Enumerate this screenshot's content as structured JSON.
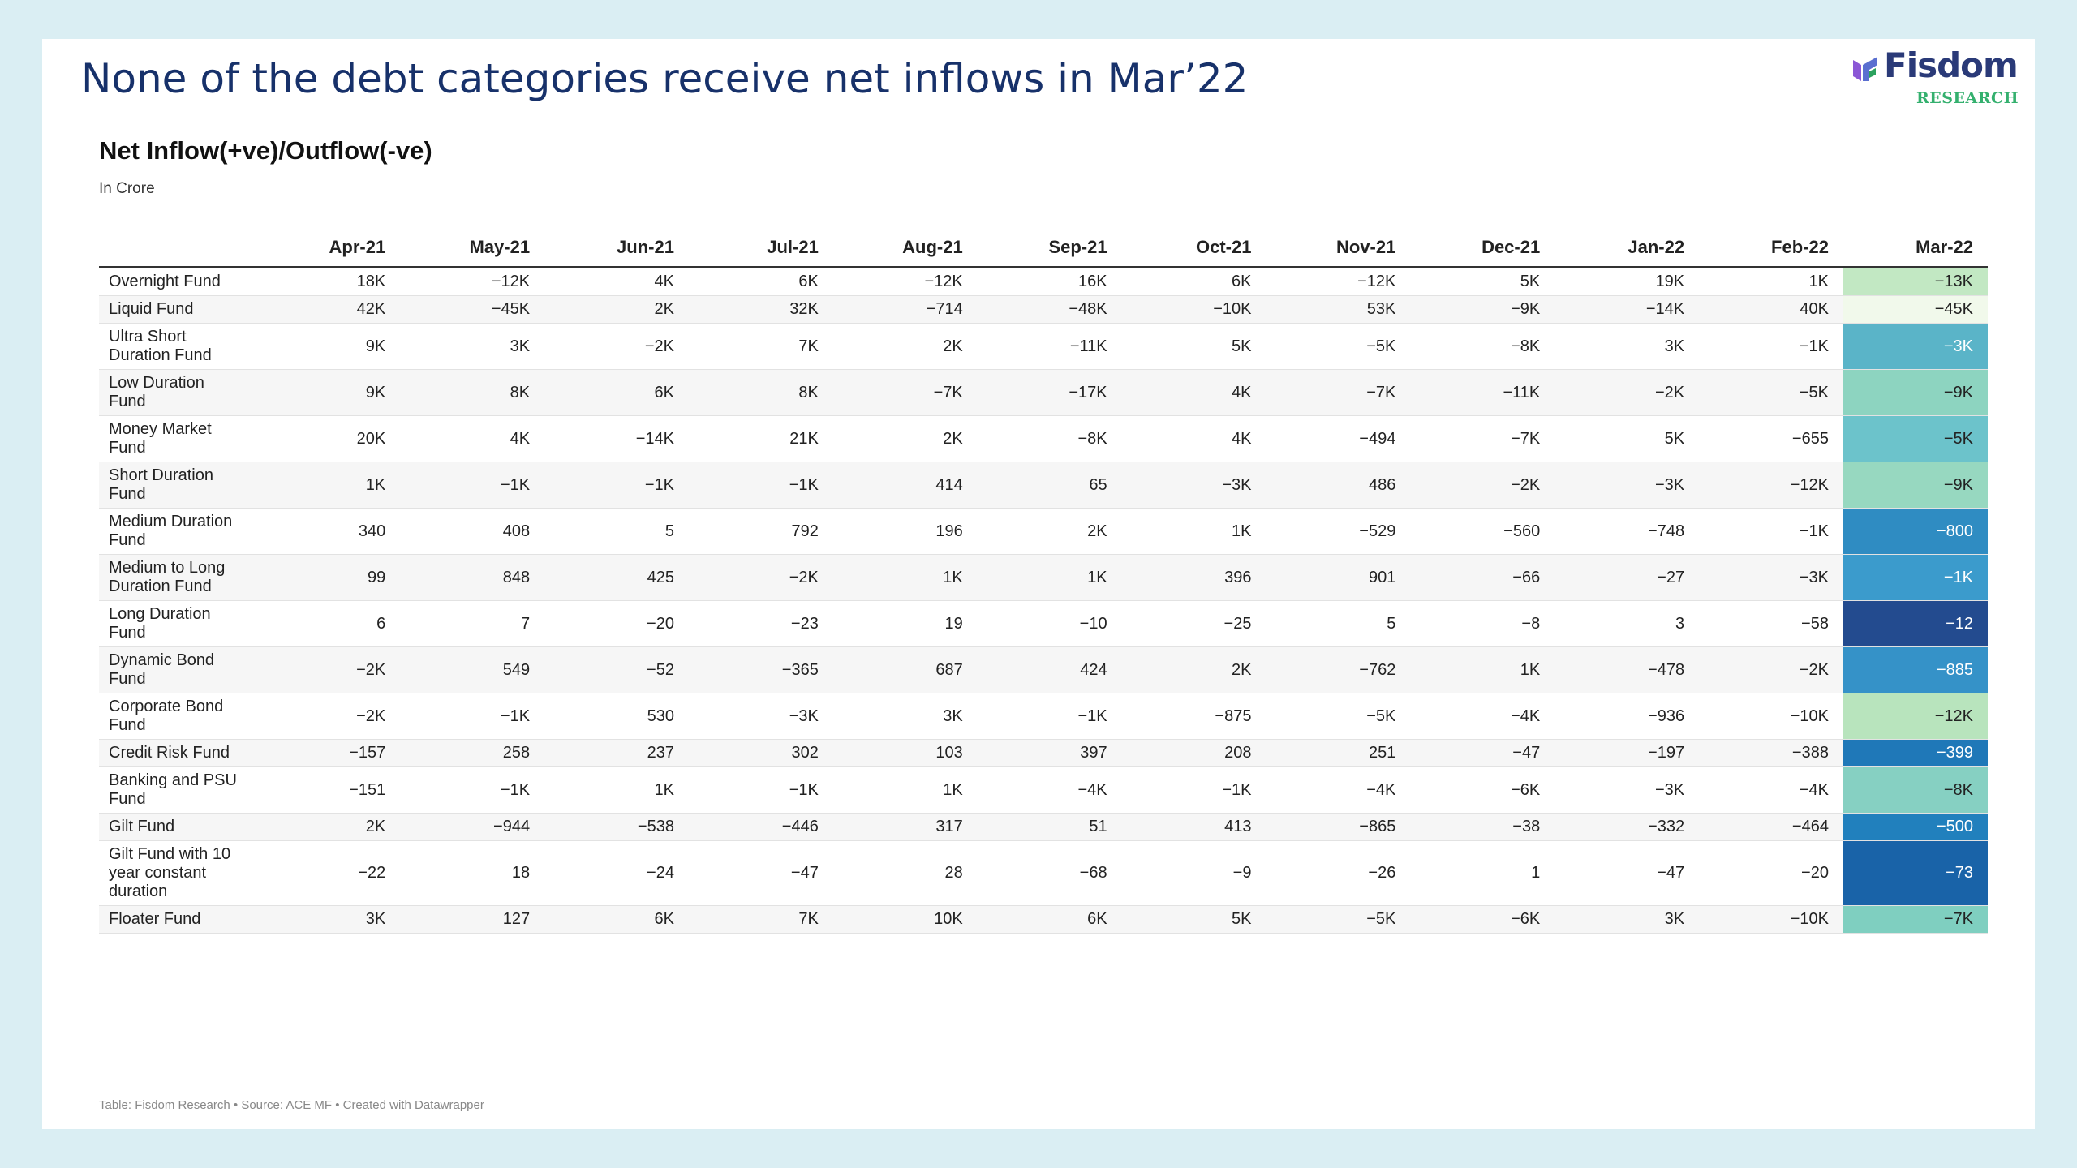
{
  "headline": "None of the debt categories receive net inflows in Mar’22",
  "logo": {
    "name": "Fisdom",
    "sub": "RESEARCH",
    "colors": [
      "#8b57d6",
      "#2ba25e"
    ]
  },
  "chart_data": {
    "type": "table",
    "title": "Net Inflow(+ve)/Outflow(-ve)",
    "subtitle": "In Crore",
    "columns": [
      "Apr-21",
      "May-21",
      "Jun-21",
      "Jul-21",
      "Aug-21",
      "Sep-21",
      "Oct-21",
      "Nov-21",
      "Dec-21",
      "Jan-22",
      "Feb-22",
      "Mar-22"
    ],
    "rows": [
      {
        "label": "Overnight Fund",
        "values": [
          "18K",
          "−12K",
          "4K",
          "6K",
          "−12K",
          "16K",
          "6K",
          "−12K",
          "5K",
          "19K",
          "1K",
          "−13K"
        ],
        "mar_color": "#c2e8c3",
        "mar_text": "#222222"
      },
      {
        "label": "Liquid Fund",
        "values": [
          "42K",
          "−45K",
          "2K",
          "32K",
          "−714",
          "−48K",
          "−10K",
          "53K",
          "−9K",
          "−14K",
          "40K",
          "−45K"
        ],
        "mar_color": "#f1f9eb",
        "mar_text": "#222222"
      },
      {
        "label": "Ultra Short Duration Fund",
        "values": [
          "9K",
          "3K",
          "−2K",
          "7K",
          "2K",
          "−11K",
          "5K",
          "−5K",
          "−8K",
          "3K",
          "−1K",
          "−3K"
        ],
        "mar_color": "#5ab4c8",
        "mar_text": "#ffffff"
      },
      {
        "label": "Low Duration Fund",
        "values": [
          "9K",
          "8K",
          "6K",
          "8K",
          "−7K",
          "−17K",
          "4K",
          "−7K",
          "−11K",
          "−2K",
          "−5K",
          "−9K"
        ],
        "mar_color": "#8dd4c0",
        "mar_text": "#222222"
      },
      {
        "label": "Money Market Fund",
        "values": [
          "20K",
          "4K",
          "−14K",
          "21K",
          "2K",
          "−8K",
          "4K",
          "−494",
          "−7K",
          "5K",
          "−655",
          "−5K"
        ],
        "mar_color": "#6cc3cb",
        "mar_text": "#222222"
      },
      {
        "label": "Short Duration Fund",
        "values": [
          "1K",
          "−1K",
          "−1K",
          "−1K",
          "414",
          "65",
          "−3K",
          "486",
          "−2K",
          "−3K",
          "−12K",
          "−9K"
        ],
        "mar_color": "#97d8c0",
        "mar_text": "#222222"
      },
      {
        "label": "Medium Duration Fund",
        "values": [
          "340",
          "408",
          "5",
          "792",
          "196",
          "2K",
          "1K",
          "−529",
          "−560",
          "−748",
          "−1K",
          "−800"
        ],
        "mar_color": "#2f8cc2",
        "mar_text": "#ffffff"
      },
      {
        "label": "Medium to Long Duration Fund",
        "values": [
          "99",
          "848",
          "425",
          "−2K",
          "1K",
          "1K",
          "396",
          "901",
          "−66",
          "−27",
          "−3K",
          "−1K"
        ],
        "mar_color": "#3b9bcc",
        "mar_text": "#ffffff"
      },
      {
        "label": "Long Duration Fund",
        "values": [
          "6",
          "7",
          "−20",
          "−23",
          "19",
          "−10",
          "−25",
          "5",
          "−8",
          "3",
          "−58",
          "−12"
        ],
        "mar_color": "#234b8f",
        "mar_text": "#ffffff"
      },
      {
        "label": "Dynamic Bond Fund",
        "values": [
          "−2K",
          "549",
          "−52",
          "−365",
          "687",
          "424",
          "2K",
          "−762",
          "1K",
          "−478",
          "−2K",
          "−885"
        ],
        "mar_color": "#3592c8",
        "mar_text": "#ffffff"
      },
      {
        "label": "Corporate Bond Fund",
        "values": [
          "−2K",
          "−1K",
          "530",
          "−3K",
          "3K",
          "−1K",
          "−875",
          "−5K",
          "−4K",
          "−936",
          "−10K",
          "−12K"
        ],
        "mar_color": "#b8e4bd",
        "mar_text": "#222222"
      },
      {
        "label": "Credit Risk Fund",
        "values": [
          "−157",
          "258",
          "237",
          "302",
          "103",
          "397",
          "208",
          "251",
          "−47",
          "−197",
          "−388",
          "−399"
        ],
        "mar_color": "#1f78b8",
        "mar_text": "#ffffff"
      },
      {
        "label": "Banking and PSU Fund",
        "values": [
          "−151",
          "−1K",
          "1K",
          "−1K",
          "1K",
          "−4K",
          "−1K",
          "−4K",
          "−6K",
          "−3K",
          "−4K",
          "−8K"
        ],
        "mar_color": "#86d0c2",
        "mar_text": "#222222"
      },
      {
        "label": "Gilt Fund",
        "values": [
          "2K",
          "−944",
          "−538",
          "−446",
          "317",
          "51",
          "413",
          "−865",
          "−38",
          "−332",
          "−464",
          "−500"
        ],
        "mar_color": "#2180bd",
        "mar_text": "#ffffff"
      },
      {
        "label": "Gilt Fund with 10 year constant duration",
        "values": [
          "−22",
          "18",
          "−24",
          "−47",
          "28",
          "−68",
          "−9",
          "−26",
          "1",
          "−47",
          "−20",
          "−73"
        ],
        "mar_color": "#1963a8",
        "mar_text": "#ffffff"
      },
      {
        "label": "Floater Fund",
        "values": [
          "3K",
          "127",
          "6K",
          "7K",
          "10K",
          "6K",
          "5K",
          "−5K",
          "−6K",
          "3K",
          "−10K",
          "−7K"
        ],
        "mar_color": "#7fcfc0",
        "mar_text": "#222222"
      }
    ],
    "footer": "Table: Fisdom Research • Source: ACE MF • Created with Datawrapper"
  }
}
